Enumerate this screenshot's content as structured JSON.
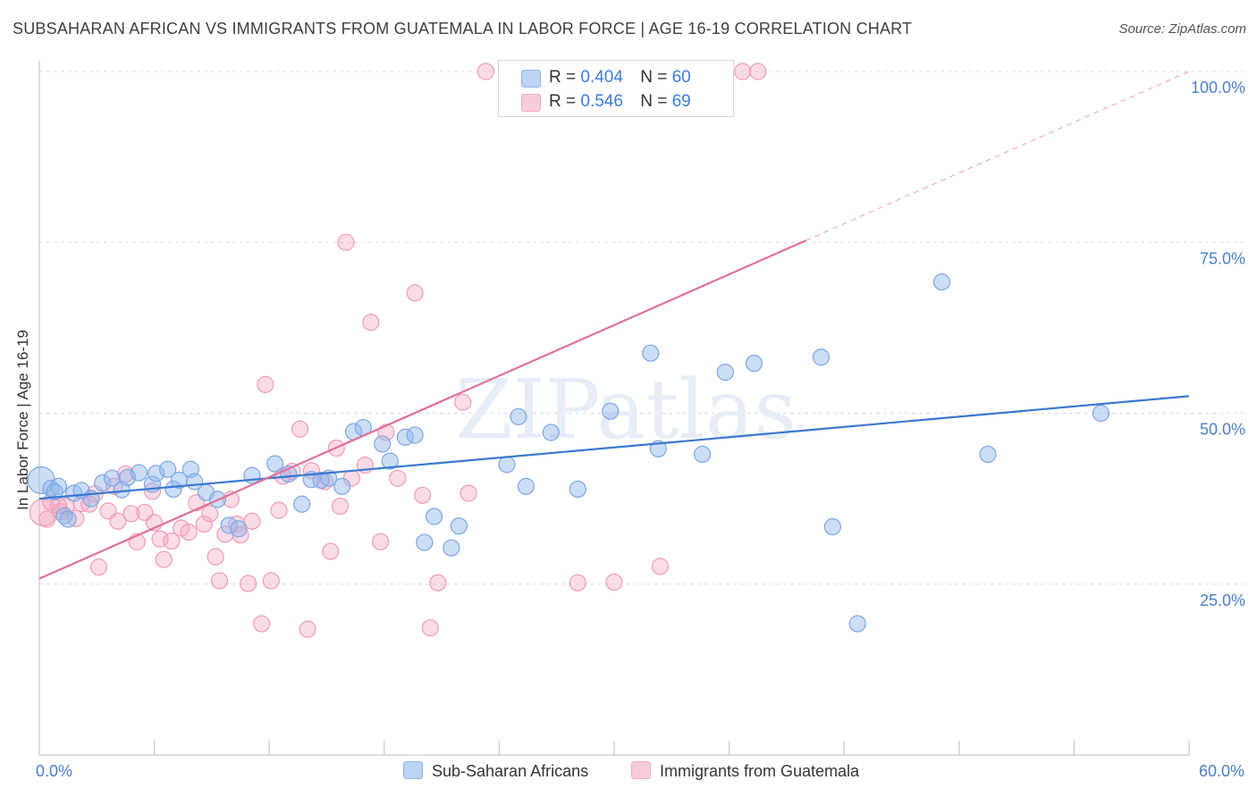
{
  "header": {
    "title": "SUBSAHARAN AFRICAN VS IMMIGRANTS FROM GUATEMALA IN LABOR FORCE | AGE 16-19 CORRELATION CHART",
    "source": "Source: ZipAtlas.com"
  },
  "watermark": "ZIPatlas",
  "legend_top": {
    "rows": [
      {
        "r_label": "R = ",
        "r_value": "0.404",
        "n_label": "N = ",
        "n_value": "60"
      },
      {
        "r_label": "R = ",
        "r_value": "0.546",
        "n_label": "N = ",
        "n_value": "69"
      }
    ]
  },
  "chart_data": {
    "type": "scatter",
    "xlabel": "",
    "ylabel": "In Labor Force | Age 16-19",
    "xlim": [
      0,
      60
    ],
    "ylim": [
      0,
      100
    ],
    "x_tick_labels": [
      "0.0%",
      "60.0%"
    ],
    "y_tick_labels": [
      "25.0%",
      "50.0%",
      "75.0%",
      "100.0%"
    ],
    "y_ticks": [
      25,
      50,
      75,
      100
    ],
    "grid": "horizontal dashed",
    "legend_position": "bottom",
    "colors": {
      "blue": "#8fb6ea",
      "blue_line": "#3a78d0",
      "pink": "#f3a8c0",
      "pink_line": "#e0709a"
    },
    "series": [
      {
        "name": "Sub-Saharan Africans",
        "color": "blue",
        "trend": {
          "x": [
            0,
            60
          ],
          "y": [
            37.5,
            52.5
          ],
          "dashed_from": null
        },
        "points": [
          [
            0.1,
            40.2
          ],
          [
            0.6,
            39.0
          ],
          [
            1.0,
            39.3
          ],
          [
            1.3,
            35.0
          ],
          [
            1.8,
            38.3
          ],
          [
            2.2,
            38.7
          ],
          [
            2.7,
            37.5
          ],
          [
            3.3,
            39.8
          ],
          [
            3.8,
            40.5
          ],
          [
            4.3,
            38.8
          ],
          [
            4.6,
            40.6
          ],
          [
            5.2,
            41.3
          ],
          [
            5.9,
            39.6
          ],
          [
            6.1,
            41.2
          ],
          [
            6.7,
            41.8
          ],
          [
            7.0,
            38.9
          ],
          [
            7.3,
            40.2
          ],
          [
            7.9,
            41.8
          ],
          [
            8.7,
            38.4
          ],
          [
            9.3,
            37.4
          ],
          [
            9.9,
            33.6
          ],
          [
            10.4,
            33.1
          ],
          [
            11.1,
            40.9
          ],
          [
            12.3,
            42.6
          ],
          [
            13.0,
            41.1
          ],
          [
            13.7,
            36.7
          ],
          [
            14.2,
            40.3
          ],
          [
            14.7,
            40.2
          ],
          [
            15.1,
            40.5
          ],
          [
            15.8,
            39.3
          ],
          [
            16.4,
            47.3
          ],
          [
            16.9,
            47.9
          ],
          [
            17.9,
            45.5
          ],
          [
            18.3,
            43.0
          ],
          [
            19.1,
            46.5
          ],
          [
            19.6,
            46.8
          ],
          [
            20.1,
            31.1
          ],
          [
            20.6,
            34.9
          ],
          [
            21.5,
            30.3
          ],
          [
            21.9,
            33.5
          ],
          [
            24.4,
            42.5
          ],
          [
            25.0,
            49.5
          ],
          [
            25.4,
            39.3
          ],
          [
            26.7,
            47.2
          ],
          [
            28.1,
            38.9
          ],
          [
            29.8,
            50.3
          ],
          [
            31.9,
            58.8
          ],
          [
            32.3,
            44.8
          ],
          [
            34.6,
            44.0
          ],
          [
            35.8,
            56.0
          ],
          [
            37.3,
            57.3
          ],
          [
            40.8,
            58.2
          ],
          [
            41.4,
            33.4
          ],
          [
            42.7,
            19.2
          ],
          [
            47.1,
            69.2
          ],
          [
            49.5,
            44.0
          ],
          [
            55.4,
            50.0
          ],
          [
            0.8,
            38.5
          ],
          [
            1.5,
            34.5
          ],
          [
            8.1,
            40.0
          ]
        ]
      },
      {
        "name": "Immigrants from Guatemala",
        "color": "pink",
        "trend": {
          "x": [
            0,
            60
          ],
          "y": [
            25.8,
            100.0
          ],
          "dashed_from": 40.0
        },
        "points": [
          [
            0.2,
            35.5
          ],
          [
            0.6,
            37.0
          ],
          [
            1.1,
            35.6
          ],
          [
            1.4,
            36.4
          ],
          [
            1.9,
            34.6
          ],
          [
            2.2,
            36.8
          ],
          [
            2.6,
            36.7
          ],
          [
            3.1,
            27.5
          ],
          [
            3.6,
            35.7
          ],
          [
            3.9,
            39.3
          ],
          [
            4.1,
            34.2
          ],
          [
            4.5,
            41.1
          ],
          [
            4.8,
            35.3
          ],
          [
            5.1,
            31.2
          ],
          [
            5.5,
            35.5
          ],
          [
            5.9,
            38.6
          ],
          [
            6.3,
            31.6
          ],
          [
            6.5,
            28.6
          ],
          [
            6.9,
            31.3
          ],
          [
            7.4,
            33.2
          ],
          [
            7.8,
            32.6
          ],
          [
            8.2,
            36.9
          ],
          [
            8.6,
            33.8
          ],
          [
            8.9,
            35.3
          ],
          [
            9.2,
            29.0
          ],
          [
            9.4,
            25.5
          ],
          [
            9.7,
            32.3
          ],
          [
            10.0,
            37.4
          ],
          [
            10.3,
            33.8
          ],
          [
            10.5,
            32.2
          ],
          [
            10.9,
            25.1
          ],
          [
            11.1,
            34.2
          ],
          [
            11.6,
            19.2
          ],
          [
            11.8,
            54.2
          ],
          [
            12.1,
            25.5
          ],
          [
            12.5,
            35.8
          ],
          [
            13.2,
            41.5
          ],
          [
            13.6,
            47.7
          ],
          [
            14.0,
            18.4
          ],
          [
            14.2,
            41.6
          ],
          [
            14.9,
            40.0
          ],
          [
            15.2,
            29.8
          ],
          [
            15.5,
            44.9
          ],
          [
            15.7,
            36.4
          ],
          [
            16.0,
            75.0
          ],
          [
            16.3,
            40.5
          ],
          [
            17.0,
            42.4
          ],
          [
            17.3,
            63.3
          ],
          [
            17.8,
            31.2
          ],
          [
            18.1,
            47.2
          ],
          [
            18.7,
            40.5
          ],
          [
            19.6,
            67.6
          ],
          [
            20.0,
            38.0
          ],
          [
            20.4,
            18.6
          ],
          [
            20.8,
            25.2
          ],
          [
            22.1,
            51.6
          ],
          [
            22.4,
            38.3
          ],
          [
            23.3,
            100.0
          ],
          [
            25.1,
            100.0
          ],
          [
            28.1,
            25.2
          ],
          [
            30.0,
            25.3
          ],
          [
            32.4,
            27.6
          ],
          [
            36.7,
            100.0
          ],
          [
            37.5,
            100.0
          ],
          [
            1.0,
            36.5
          ],
          [
            0.4,
            34.5
          ],
          [
            2.9,
            38.2
          ],
          [
            6.0,
            34.0
          ],
          [
            12.7,
            40.8
          ]
        ]
      }
    ]
  },
  "bottom_legend": {
    "items": [
      {
        "label": "Sub-Saharan Africans"
      },
      {
        "label": "Immigrants from Guatemala"
      }
    ]
  }
}
